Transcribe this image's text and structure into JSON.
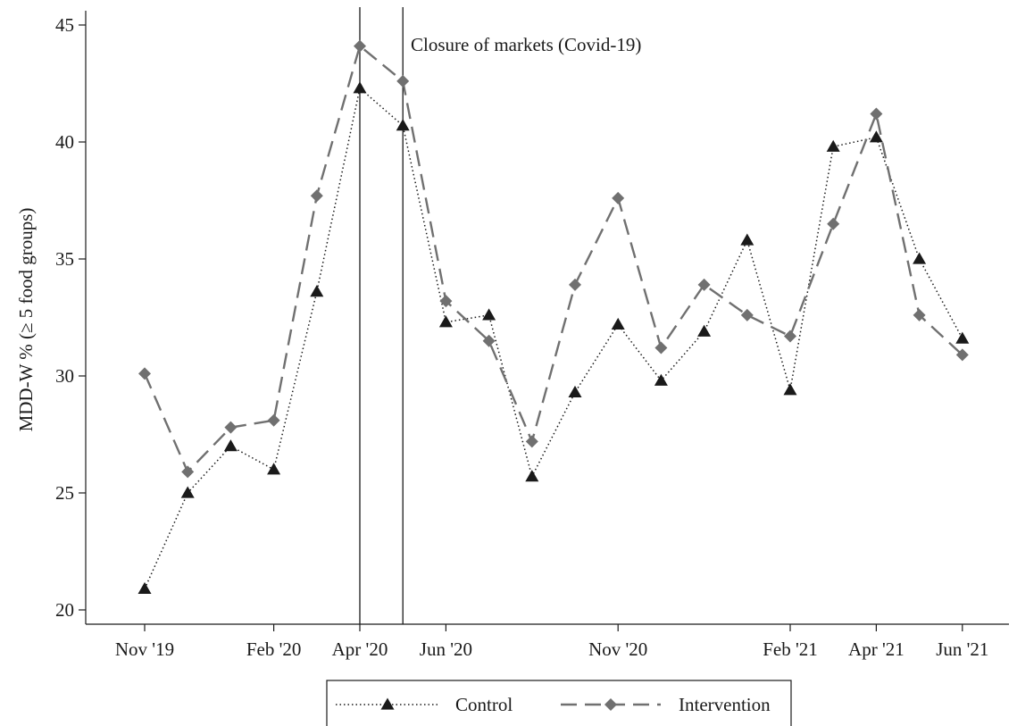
{
  "chart_data": {
    "type": "line",
    "title": "",
    "xlabel": "",
    "ylabel": "MDD-W % (≥ 5 food groups)",
    "ylim": [
      20,
      45
    ],
    "yticks": [
      20,
      25,
      30,
      35,
      40,
      45
    ],
    "xlim": [
      0,
      19.5
    ],
    "xticks": [
      {
        "x": 0,
        "label": "Nov '19"
      },
      {
        "x": 3,
        "label": "Feb '20"
      },
      {
        "x": 5,
        "label": "Apr '20"
      },
      {
        "x": 7,
        "label": "Jun '20"
      },
      {
        "x": 11,
        "label": "Nov '20"
      },
      {
        "x": 15,
        "label": "Feb '21"
      },
      {
        "x": 17,
        "label": "Apr '21"
      },
      {
        "x": 19,
        "label": "Jun '21"
      }
    ],
    "annotations": [
      {
        "type": "vline",
        "x": 5
      },
      {
        "type": "vline",
        "x": 6,
        "label": "Closure of markets (Covid-19)"
      }
    ],
    "legend_position": "bottom",
    "grid": false,
    "series": [
      {
        "name": "Control",
        "line_style": "dotted",
        "marker": "triangle",
        "color": "#1a1a1a",
        "x": [
          0,
          1,
          2,
          3,
          4,
          5,
          6,
          7,
          8,
          9,
          10,
          11,
          12,
          13,
          14,
          15,
          16,
          17,
          18,
          19
        ],
        "values": [
          20.9,
          25.0,
          27.0,
          26.0,
          33.6,
          42.3,
          40.7,
          32.3,
          32.6,
          25.7,
          29.3,
          32.2,
          29.8,
          31.9,
          35.8,
          29.4,
          39.8,
          40.2,
          35.0,
          31.6
        ]
      },
      {
        "name": "Intervention",
        "line_style": "dashed",
        "marker": "diamond",
        "color": "#707070",
        "x": [
          0,
          1,
          2,
          3,
          4,
          5,
          6,
          7,
          8,
          9,
          10,
          11,
          12,
          13,
          14,
          15,
          16,
          17,
          18,
          19
        ],
        "values": [
          30.1,
          25.9,
          27.8,
          28.1,
          37.7,
          44.1,
          42.6,
          33.2,
          31.5,
          27.2,
          33.9,
          37.6,
          31.2,
          33.9,
          32.6,
          31.7,
          36.5,
          41.2,
          32.6,
          30.9
        ]
      }
    ]
  }
}
